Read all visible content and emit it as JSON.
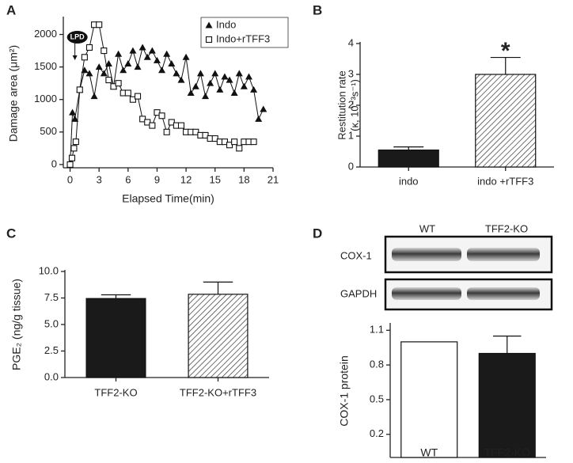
{
  "chart_data": [
    {
      "type": "line",
      "panel": "A",
      "x_label": "Elapsed Time(min)",
      "y_label": "Damage area (μm²)",
      "xlim": [
        -0.7,
        21
      ],
      "xticks": [
        0,
        3,
        6,
        9,
        12,
        15,
        18,
        21
      ],
      "ylim": [
        -50,
        2250
      ],
      "yticks": [
        0,
        500,
        1000,
        1500,
        2000
      ],
      "annotations": [
        "LPD"
      ],
      "legend": "upper right",
      "series": [
        {
          "name": "Indo",
          "color": "#111111",
          "marker": "triangle",
          "x": [
            0,
            0.25,
            0.5,
            1,
            1.5,
            2,
            2.5,
            3,
            3.5,
            4,
            4.5,
            5,
            5.5,
            6,
            6.5,
            7,
            7.5,
            8,
            8.5,
            9,
            9.5,
            10,
            10.5,
            11,
            11.5,
            12,
            12.5,
            13,
            13.5,
            14,
            14.5,
            15,
            15.5,
            16,
            16.5,
            17,
            17.5,
            18,
            18.5,
            19,
            19.5,
            20
          ],
          "values": [
            0,
            800,
            700,
            1150,
            1450,
            1400,
            1050,
            1500,
            1400,
            1550,
            1200,
            1700,
            1450,
            1550,
            1750,
            1500,
            1800,
            1650,
            1750,
            1600,
            1450,
            1700,
            1550,
            1400,
            1300,
            1650,
            1100,
            1200,
            1400,
            1050,
            1250,
            1400,
            1150,
            1350,
            1300,
            1100,
            1400,
            1200,
            1350,
            1150,
            700,
            850
          ]
        },
        {
          "name": "Indo+rTFF3",
          "color": "#111111",
          "marker": "square",
          "x": [
            0,
            0.2,
            0.4,
            0.6,
            1,
            1.5,
            2,
            2.5,
            3,
            3.5,
            4,
            4.5,
            5,
            5.5,
            6,
            6.5,
            7,
            7.5,
            8,
            8.5,
            9,
            9.5,
            10,
            10.5,
            11,
            11.5,
            12,
            12.5,
            13,
            13.5,
            14,
            14.5,
            15,
            15.5,
            16,
            16.5,
            17,
            17.5,
            18,
            18.5,
            19
          ],
          "values": [
            0,
            100,
            250,
            350,
            1150,
            1650,
            1800,
            2150,
            2150,
            1750,
            1300,
            1200,
            1250,
            1100,
            1100,
            1000,
            1050,
            700,
            650,
            600,
            800,
            750,
            500,
            650,
            600,
            600,
            500,
            500,
            500,
            450,
            450,
            400,
            400,
            350,
            350,
            300,
            350,
            250,
            350,
            350,
            350
          ]
        }
      ]
    },
    {
      "type": "bar",
      "panel": "B",
      "y_label": [
        "Restitution rate",
        "(κ, 10⁻³s⁻¹)"
      ],
      "categories": [
        "indo",
        "indo +rTFF3"
      ],
      "values": [
        0.55,
        3.0
      ],
      "errors": [
        0.1,
        0.55
      ],
      "fills": [
        "#1a1a1a",
        "hatched"
      ],
      "annotations": [
        "*"
      ],
      "ylim": [
        0,
        4
      ],
      "yticks": [
        0,
        1,
        2,
        3,
        4
      ]
    },
    {
      "type": "bar",
      "panel": "C",
      "y_label": "PGE₂ (ng/g tissue)",
      "categories": [
        "TFF2-KO",
        "TFF2-KO+rTFF3"
      ],
      "values": [
        7.45,
        7.85
      ],
      "errors": [
        0.35,
        1.15
      ],
      "fills": [
        "#1a1a1a",
        "hatched"
      ],
      "ylim": [
        0,
        10
      ],
      "yticks": [
        {
          "value": 0,
          "label": "0.0"
        },
        {
          "value": 2.5,
          "label": "2.5"
        },
        {
          "value": 5,
          "label": "5.0"
        },
        {
          "value": 7.5,
          "label": "7.5"
        },
        {
          "value": 10,
          "label": "10.0"
        }
      ]
    },
    {
      "type": "bar",
      "panel": "D",
      "y_label": "COX-1 protein",
      "blot": {
        "columns": [
          "WT",
          "TFF2-KO"
        ],
        "rows": [
          "COX-1",
          "GAPDH"
        ]
      },
      "categories": [
        "WT",
        "TFF2-KO"
      ],
      "values": [
        1.0,
        0.9
      ],
      "errors": [
        null,
        0.15
      ],
      "fills": [
        "#ffffff",
        "#1a1a1a"
      ],
      "ylim": [
        0,
        1.15
      ],
      "yticks": [
        0.2,
        0.5,
        0.8,
        1.1
      ]
    }
  ]
}
